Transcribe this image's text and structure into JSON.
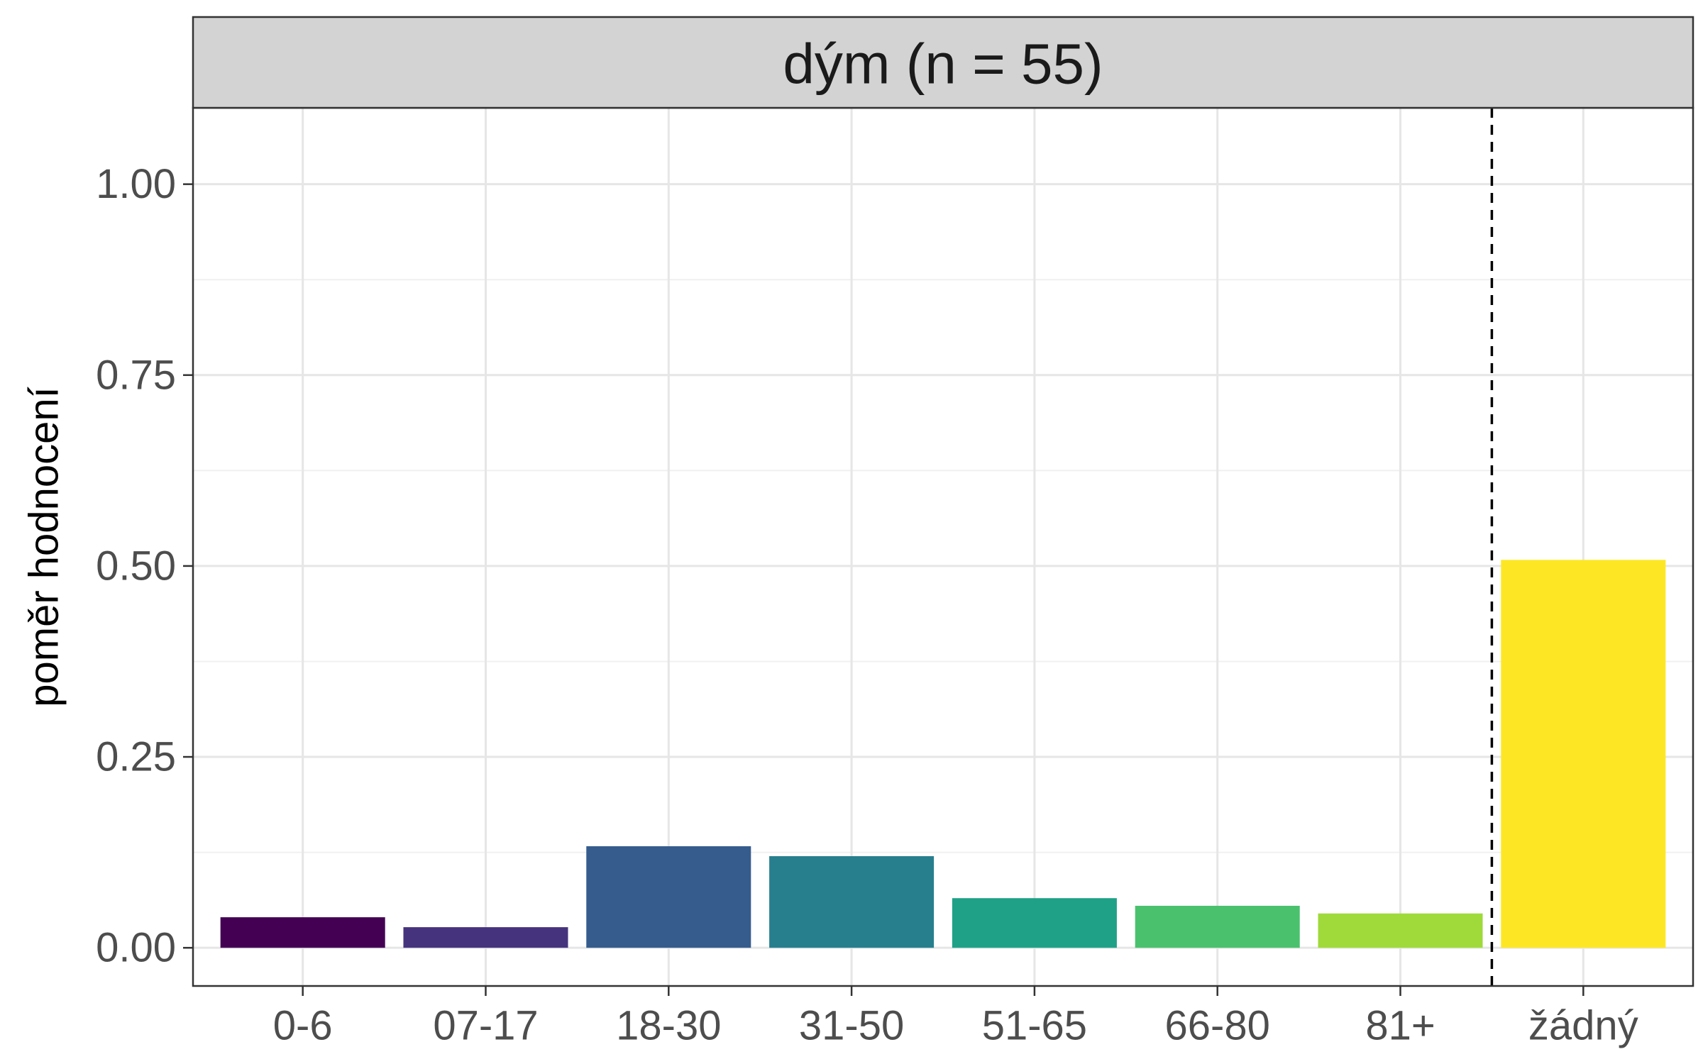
{
  "chart_data": {
    "type": "bar",
    "facet_title": "dým (n = 55)",
    "title": "",
    "xlabel": "",
    "ylabel": "poměr hodnocení",
    "categories": [
      "0-6",
      "07-17",
      "18-30",
      "31-50",
      "51-65",
      "66-80",
      "81+",
      "žádný"
    ],
    "values": [
      0.04,
      0.027,
      0.133,
      0.12,
      0.065,
      0.055,
      0.045,
      0.508
    ],
    "colors": [
      "#440154",
      "#46337E",
      "#365C8D",
      "#277F8E",
      "#1FA187",
      "#4AC16D",
      "#9FDA3A",
      "#FDE725"
    ],
    "ylim": [
      -0.05,
      1.1
    ],
    "yticks": [
      0,
      0.25,
      0.5,
      0.75,
      1.0
    ],
    "ytick_labels": [
      "0.00",
      "0.25",
      "0.50",
      "0.75",
      "1.00"
    ],
    "separator_after_index": 6,
    "separator_style": "dashed",
    "grid": true,
    "legend": "none"
  }
}
